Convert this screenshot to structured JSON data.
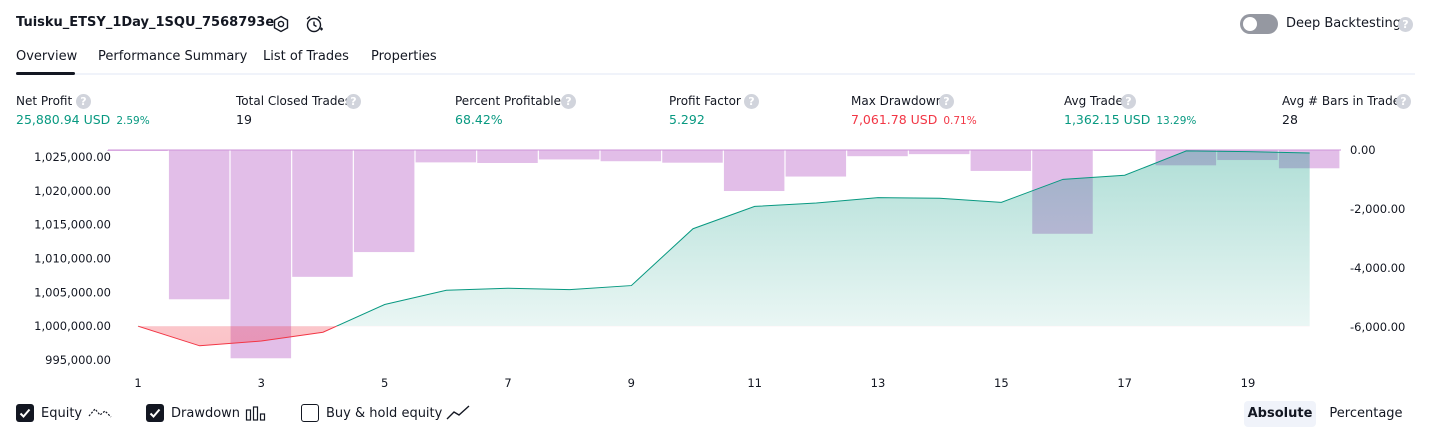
{
  "title": "Tuisku_ETSY_1Day_1SQU_7568793e",
  "header_icons": [
    "settings-icon",
    "alert-clock-icon",
    "help-icon"
  ],
  "deep_backtesting": {
    "label": "Deep Backtesting",
    "enabled": false
  },
  "tabs": [
    {
      "label": "Overview",
      "active": true
    },
    {
      "label": "Performance Summary",
      "active": false
    },
    {
      "label": "List of Trades",
      "active": false
    },
    {
      "label": "Properties",
      "active": false
    }
  ],
  "metrics": [
    {
      "label": "Net Profit",
      "value": "25,880.94 USD",
      "pct": "2.59%",
      "color": "#089981"
    },
    {
      "label": "Total Closed Trades",
      "value": "19",
      "pct": "",
      "color": "#131722"
    },
    {
      "label": "Percent Profitable",
      "value": "68.42%",
      "pct": "",
      "color": "#089981"
    },
    {
      "label": "Profit Factor",
      "value": "5.292",
      "pct": "",
      "color": "#089981"
    },
    {
      "label": "Max Drawdown",
      "value": "7,061.78 USD",
      "pct": "0.71%",
      "color": "#f23645"
    },
    {
      "label": "Avg Trade",
      "value": "1,362.15 USD",
      "pct": "13.29%",
      "color": "#089981"
    },
    {
      "label": "Avg # Bars in Trades",
      "value": "28",
      "pct": "",
      "color": "#131722"
    }
  ],
  "legend": [
    {
      "label": "Equity",
      "checked": true,
      "icon": "equity-line-icon"
    },
    {
      "label": "Drawdown",
      "checked": true,
      "icon": "drawdown-bars-icon"
    },
    {
      "label": "Buy & hold equity",
      "checked": false,
      "icon": "buy-hold-line-icon"
    }
  ],
  "scale_buttons": {
    "absolute": "Absolute",
    "percentage": "Percentage",
    "active": "absolute"
  },
  "chart_data": {
    "type": "area",
    "x": [
      1,
      2,
      3,
      4,
      5,
      6,
      7,
      8,
      9,
      10,
      11,
      12,
      13,
      14,
      15,
      16,
      17,
      18,
      19,
      20
    ],
    "x_ticks": [
      "1",
      "3",
      "5",
      "7",
      "9",
      "11",
      "13",
      "15",
      "17",
      "19"
    ],
    "left_axis": {
      "ticks": [
        "1,025,000.00",
        "1,020,000.00",
        "1,015,000.00",
        "1,010,000.00",
        "1,005,000.00",
        "1,000,000.00",
        "995,000.00"
      ],
      "tick_values": [
        1025000,
        1020000,
        1015000,
        1010000,
        1005000,
        1000000,
        995000
      ],
      "range": [
        994000,
        1026000
      ]
    },
    "right_axis": {
      "ticks": [
        "0.00",
        "-2,000.00",
        "-4,000.00",
        "-6,000.00"
      ],
      "tick_values": [
        0,
        -2000,
        -4000,
        -6000
      ],
      "range": [
        -7200,
        0
      ]
    },
    "baseline": 1000000,
    "series": [
      {
        "name": "Equity",
        "axis": "left",
        "values": [
          1000000,
          997100,
          997800,
          999100,
          1003200,
          1005300,
          1005600,
          1005400,
          1006000,
          1014400,
          1017700,
          1018200,
          1019000,
          1018900,
          1018300,
          1021700,
          1022300,
          1025900,
          1025800,
          1025600
        ],
        "color_up": "#089981",
        "color_down": "#f23645"
      },
      {
        "name": "Drawdown",
        "axis": "right",
        "type": "bar",
        "values": [
          -20,
          -5060,
          -7060,
          -4300,
          -3460,
          -420,
          -440,
          -320,
          -380,
          -430,
          -1390,
          -900,
          -210,
          -140,
          -710,
          -2840,
          -10,
          -520,
          -340,
          -620
        ],
        "color": "#ce93d8"
      }
    ]
  }
}
